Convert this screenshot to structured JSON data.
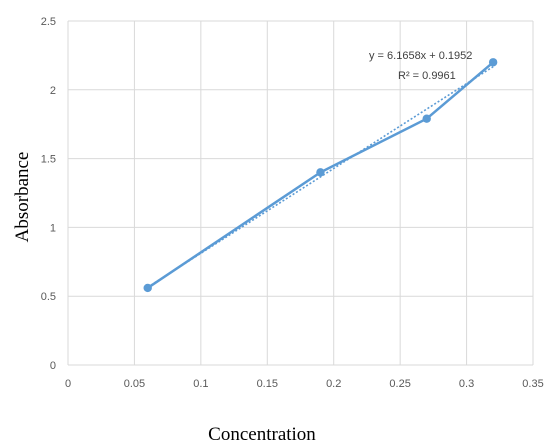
{
  "chart_data": {
    "type": "scatter",
    "xlabel": "Concentration",
    "ylabel": "Absorbance",
    "xlim": [
      0,
      0.35
    ],
    "ylim": [
      0,
      2.5
    ],
    "x_ticks": [
      "0",
      "0.05",
      "0.1",
      "0.15",
      "0.2",
      "0.25",
      "0.3",
      "0.35"
    ],
    "y_ticks": [
      "0",
      "0.5",
      "1",
      "1.5",
      "2",
      "2.5"
    ],
    "grid": true,
    "series": [
      {
        "x": [
          0.06,
          0.19,
          0.27,
          0.32
        ],
        "y": [
          0.56,
          1.4,
          1.79,
          2.2
        ],
        "color": "#5b9bd5"
      }
    ],
    "trendline": {
      "slope": 6.1658,
      "intercept": 0.1952,
      "equation": "y = 6.1658x + 0.1952",
      "r_squared": "R² = 0.9961"
    }
  }
}
